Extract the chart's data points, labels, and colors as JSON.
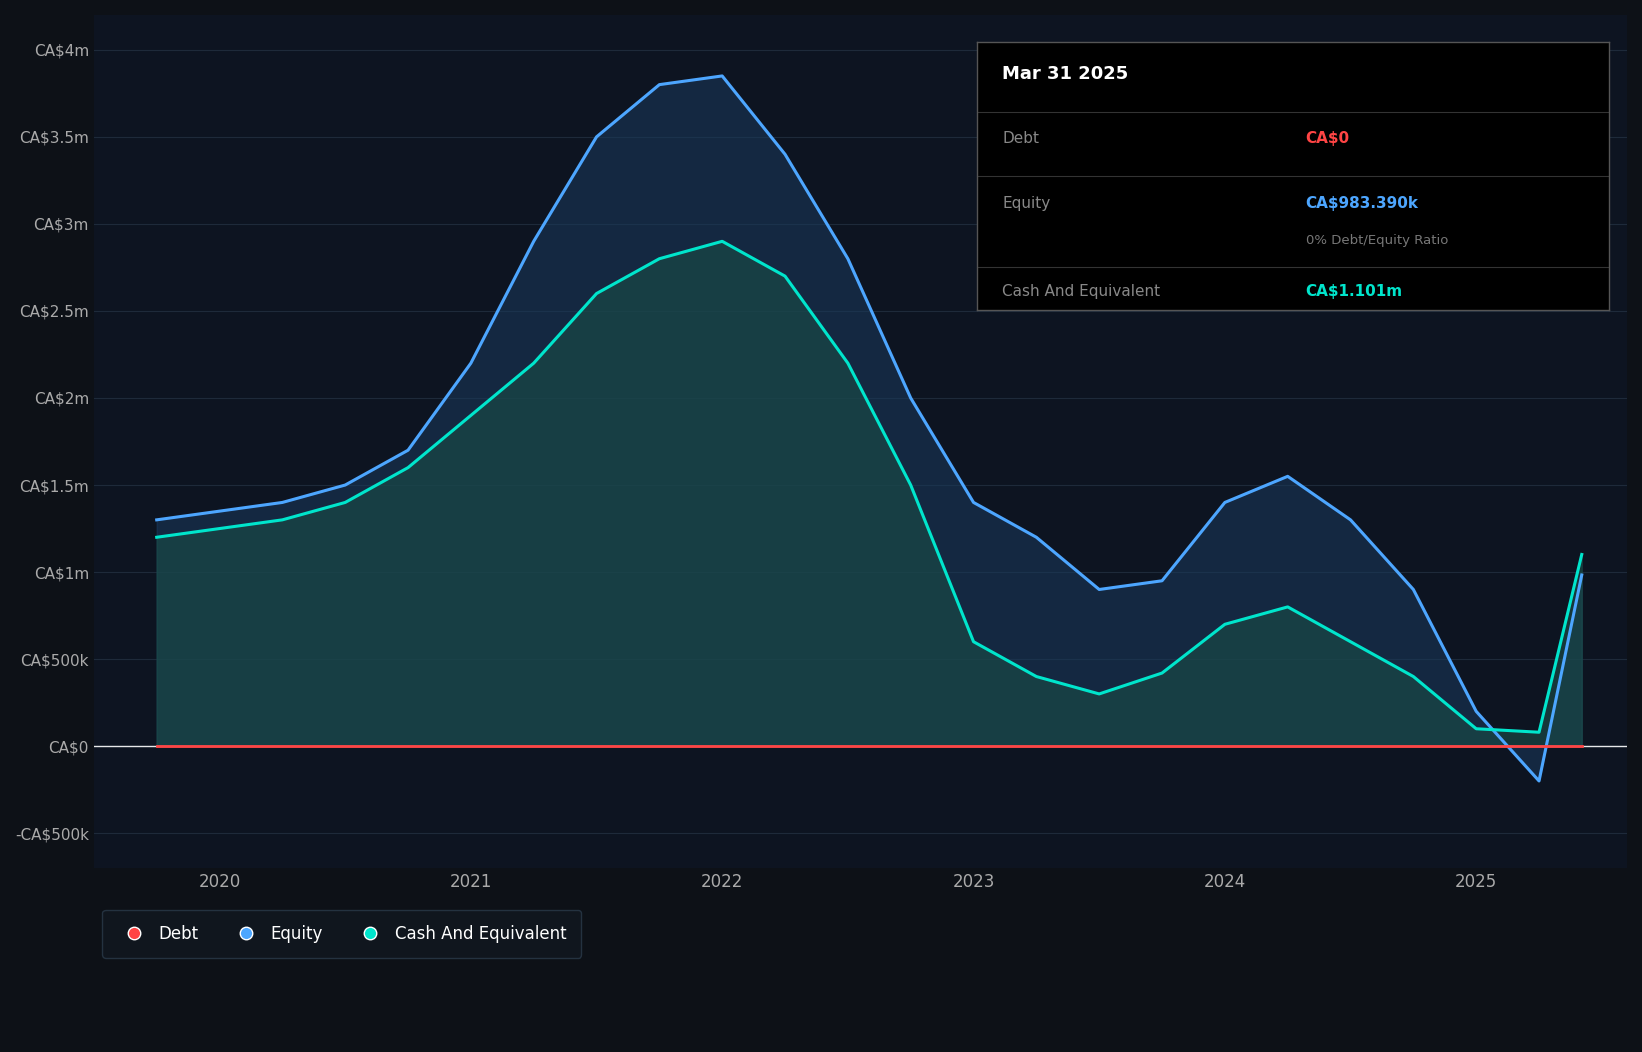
{
  "bg_color": "#0d1117",
  "plot_bg_color": "#0d1421",
  "grid_color": "#1e2a3a",
  "ytick_labels": [
    "-CA$500k",
    "CA$0",
    "CA$500k",
    "CA$1m",
    "CA$1.5m",
    "CA$2m",
    "CA$2.5m",
    "CA$3m",
    "CA$3.5m",
    "CA$4m"
  ],
  "ytick_values": [
    -500000,
    0,
    500000,
    1000000,
    1500000,
    2000000,
    2500000,
    3000000,
    3500000,
    4000000
  ],
  "ylim": [
    -700000,
    4200000
  ],
  "xtick_labels": [
    "2020",
    "2021",
    "2022",
    "2023",
    "2024",
    "2025"
  ],
  "xtick_positions": [
    2020,
    2021,
    2022,
    2023,
    2024,
    2025
  ],
  "xlim": [
    2019.5,
    2025.6
  ],
  "equity_color": "#4da6ff",
  "equity_fill_color": "#1a3a5c",
  "cash_color": "#00e5cc",
  "cash_fill_color": "#1a4a47",
  "debt_color": "#ff4444",
  "tooltip_title": "Mar 31 2025",
  "tooltip_debt_label": "Debt",
  "tooltip_debt_value": "CA$0",
  "tooltip_debt_color": "#ff4444",
  "tooltip_equity_label": "Equity",
  "tooltip_equity_value": "CA$983.390k",
  "tooltip_equity_color": "#4da6ff",
  "tooltip_ratio_label": "0% Debt/Equity Ratio",
  "tooltip_cash_label": "Cash And Equivalent",
  "tooltip_cash_value": "CA$1.101m",
  "tooltip_cash_color": "#00e5cc",
  "legend_debt_label": "Debt",
  "legend_equity_label": "Equity",
  "legend_cash_label": "Cash And Equivalent",
  "time_points": [
    2019.75,
    2020.0,
    2020.25,
    2020.5,
    2020.75,
    2021.0,
    2021.25,
    2021.5,
    2021.75,
    2022.0,
    2022.25,
    2022.5,
    2022.75,
    2023.0,
    2023.25,
    2023.5,
    2023.75,
    2024.0,
    2024.25,
    2024.5,
    2024.75,
    2025.0,
    2025.25,
    2025.42
  ],
  "equity_values": [
    1300000,
    1350000,
    1400000,
    1500000,
    1700000,
    2200000,
    2900000,
    3500000,
    3800000,
    3850000,
    3400000,
    2800000,
    2000000,
    1400000,
    1200000,
    900000,
    950000,
    1400000,
    1550000,
    1300000,
    900000,
    200000,
    -200000,
    983390
  ],
  "cash_values": [
    1200000,
    1250000,
    1300000,
    1400000,
    1600000,
    1900000,
    2200000,
    2600000,
    2800000,
    2900000,
    2700000,
    2200000,
    1500000,
    600000,
    400000,
    300000,
    420000,
    700000,
    800000,
    600000,
    400000,
    100000,
    80000,
    1101000
  ],
  "debt_values": [
    0,
    0,
    0,
    0,
    0,
    0,
    0,
    0,
    0,
    0,
    0,
    0,
    0,
    0,
    0,
    0,
    0,
    0,
    0,
    0,
    0,
    0,
    0,
    0
  ]
}
